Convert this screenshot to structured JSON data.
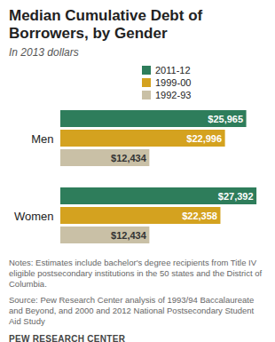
{
  "chart_data": {
    "type": "bar",
    "orientation": "horizontal",
    "title": "Median Cumulative Debt of Borrowers, by Gender",
    "subtitle": "In 2013 dollars",
    "categories": [
      "Men",
      "Women"
    ],
    "series": [
      {
        "name": "2011-12",
        "color": "#2e7d5b",
        "values": [
          25965,
          27392
        ],
        "value_labels": [
          "$25,965",
          "$27,392"
        ]
      },
      {
        "name": "1999-00",
        "color": "#d4a21f",
        "values": [
          22996,
          22358
        ],
        "value_labels": [
          "$22,996",
          "$22,358"
        ]
      },
      {
        "name": "1992-93",
        "color": "#c9c0a6",
        "values": [
          12434,
          12434
        ],
        "value_labels": [
          "$12,434",
          "$12,434"
        ]
      }
    ],
    "xlim": [
      0,
      28000
    ],
    "data_labels": true,
    "tick_labels": "y",
    "legend": "top",
    "notes": "Notes: Estimates include bachelor's degree recipients from Title IV eligible postsecondary institutions in the 50 states and the District of Columbia.",
    "source": "Source: Pew Research Center analysis of 1993/94 Baccalaureate and Beyond, and 2000 and 2012 National Postsecondary Student Aid Study",
    "credit": "PEW RESEARCH CENTER"
  }
}
